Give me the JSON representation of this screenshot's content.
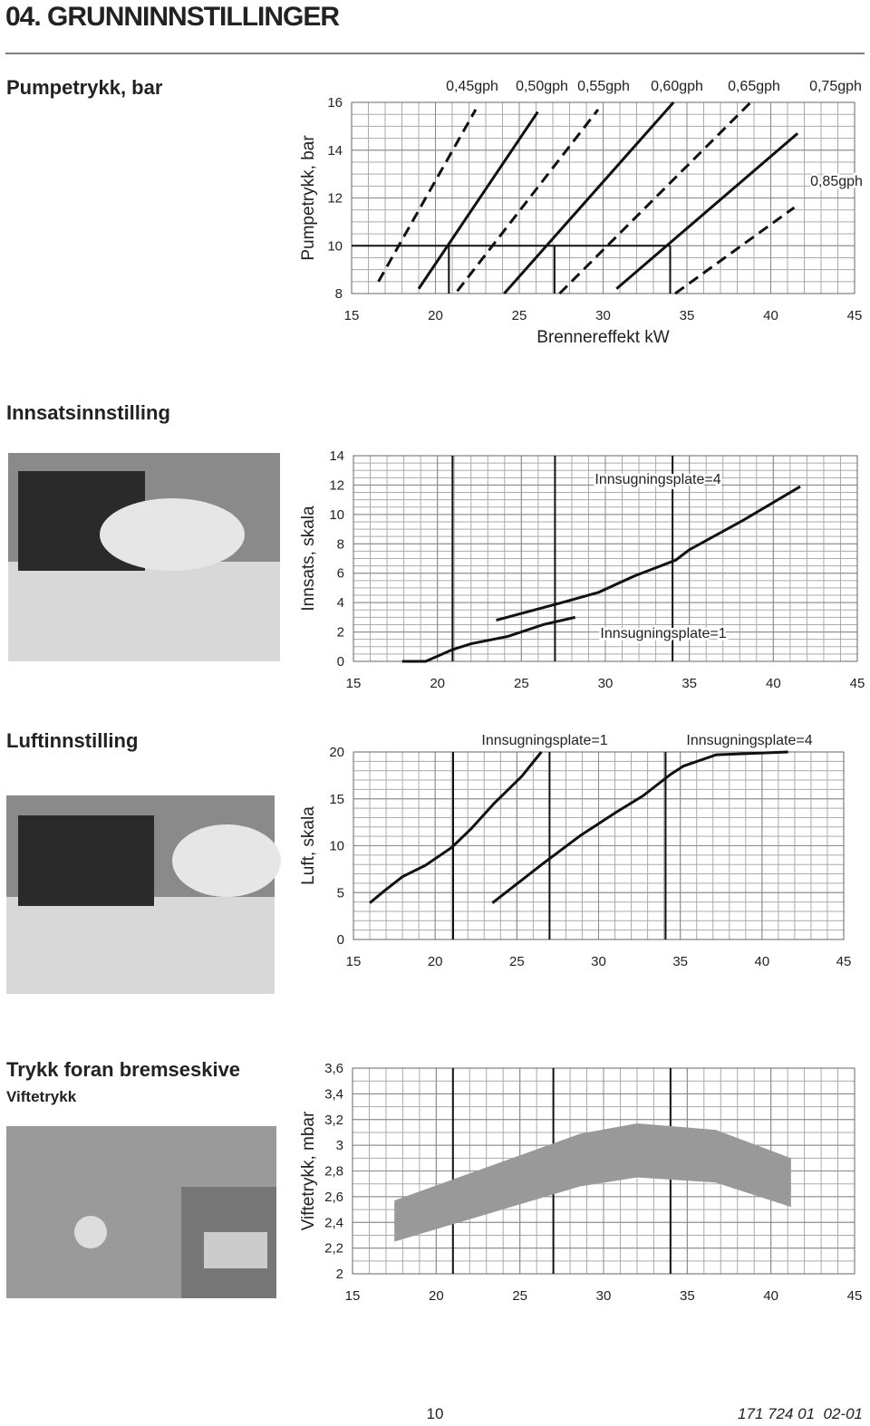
{
  "header": {
    "title": "04. GRUNNINNSTILLINGER"
  },
  "sections": [
    {
      "heading": "Pumpetrykk, bar"
    },
    {
      "heading": "Innsatsinnstilling"
    },
    {
      "heading": "Luftinnstilling"
    },
    {
      "heading": "Trykk foran bremseskive",
      "subheading": "Viftetrykk"
    }
  ],
  "chart_data": [
    {
      "type": "line",
      "ylabel": "Pumpetrykk, bar",
      "xlabel": "Brennereffekt kW",
      "xlim": [
        15,
        45
      ],
      "ylim": [
        8,
        16
      ],
      "xticks": [
        15,
        20,
        25,
        30,
        35,
        40,
        45
      ],
      "yticks": [
        8,
        10,
        12,
        14,
        16
      ],
      "grid": true,
      "ref_y": 10,
      "ref_x": [
        20.8,
        27.1,
        34.0
      ],
      "series": [
        {
          "name": "0,45gph",
          "color": "#111111",
          "dash": true,
          "x": [
            16.6,
            22.4
          ],
          "values": [
            8.5,
            15.7
          ]
        },
        {
          "name": "0,50gph",
          "color": "#111111",
          "dash": false,
          "x": [
            19.0,
            26.1
          ],
          "values": [
            8.2,
            15.6
          ]
        },
        {
          "name": "0,55gph",
          "color": "#111111",
          "dash": true,
          "x": [
            21.3,
            29.7
          ],
          "values": [
            8.1,
            15.7
          ]
        },
        {
          "name": "0,60gph",
          "color": "#111111",
          "dash": false,
          "x": [
            24.1,
            34.2
          ],
          "values": [
            8.0,
            16.0
          ]
        },
        {
          "name": "0,65gph",
          "color": "#111111",
          "dash": true,
          "x": [
            27.4,
            38.8
          ],
          "values": [
            8.0,
            16.0
          ]
        },
        {
          "name": "0,75gph",
          "color": "#111111",
          "dash": false,
          "x": [
            30.8,
            41.6
          ],
          "values": [
            8.2,
            14.7
          ]
        },
        {
          "name": "0,85gph",
          "color": "#111111",
          "dash": true,
          "x": [
            34.3,
            41.4
          ],
          "values": [
            8.0,
            11.6
          ]
        }
      ]
    },
    {
      "type": "line",
      "ylabel": "Innsats, skala",
      "xlim": [
        15,
        45
      ],
      "ylim": [
        0,
        14
      ],
      "xticks": [
        15,
        20,
        25,
        30,
        35,
        40,
        45
      ],
      "yticks": [
        0,
        2,
        4,
        6,
        8,
        10,
        12,
        14
      ],
      "grid": true,
      "ref_x": [
        20.9,
        27.0,
        34.0
      ],
      "series": [
        {
          "name": "Innsugningsplate=1",
          "color": "#111111",
          "dash": false,
          "x": [
            17.9,
            19.3,
            20.9,
            22.0,
            24.2,
            26.3,
            28.2
          ],
          "values": [
            0,
            0,
            0.8,
            1.2,
            1.7,
            2.5,
            3.0
          ]
        },
        {
          "name": "Innsugningsplate=4",
          "color": "#111111",
          "dash": false,
          "x": [
            23.5,
            27.4,
            29.6,
            31.7,
            34.2,
            35.0,
            38.2,
            41.6
          ],
          "values": [
            2.8,
            4.0,
            4.7,
            5.8,
            6.9,
            7.6,
            9.6,
            11.9
          ]
        }
      ]
    },
    {
      "type": "line",
      "ylabel": "Luft, skala",
      "xlim": [
        15,
        45
      ],
      "ylim": [
        0,
        20
      ],
      "xticks": [
        15,
        20,
        25,
        30,
        35,
        40,
        45
      ],
      "yticks": [
        0,
        5,
        10,
        15,
        20
      ],
      "grid": true,
      "ref_x": [
        21.1,
        27.0,
        34.1
      ],
      "series": [
        {
          "name": "Innsugningsplate=1",
          "color": "#111111",
          "dash": false,
          "x": [
            16.0,
            16.9,
            18.0,
            19.4,
            21.0,
            22.2,
            23.6,
            25.3,
            26.5
          ],
          "values": [
            3.9,
            5.2,
            6.7,
            7.9,
            9.8,
            11.8,
            14.5,
            17.4,
            20.0
          ]
        },
        {
          "name": "Innsugningsplate=4",
          "color": "#111111",
          "dash": false,
          "x": [
            23.5,
            26.6,
            28.9,
            31.1,
            32.7,
            34.4,
            35.2,
            37.2,
            41.6
          ],
          "values": [
            3.9,
            8.1,
            11.1,
            13.6,
            15.3,
            17.6,
            18.5,
            19.7,
            20.0
          ]
        }
      ]
    },
    {
      "type": "area",
      "ylabel": "Viftetrykk, mbar",
      "xlim": [
        15,
        45
      ],
      "ylim": [
        2,
        3.6
      ],
      "xticks": [
        15,
        20,
        25,
        30,
        35,
        40,
        45
      ],
      "yticks": [
        2,
        {
          "value": 2.2,
          "label": "2,2"
        },
        {
          "value": 2.4,
          "label": "2,4"
        },
        {
          "value": 2.6,
          "label": "2,6"
        },
        {
          "value": 2.8,
          "label": "2,8"
        },
        3,
        {
          "value": 3.2,
          "label": "3,2"
        },
        {
          "value": 3.4,
          "label": "3,4"
        },
        {
          "value": 3.6,
          "label": "3,6"
        }
      ],
      "grid": true,
      "ref_x": [
        21.0,
        27.0,
        34.0
      ],
      "color": "#999999",
      "x": [
        17.5,
        28.6,
        32.0,
        36.7,
        41.2
      ],
      "upper": [
        2.57,
        3.09,
        3.17,
        3.12,
        2.9
      ],
      "lower": [
        2.25,
        2.68,
        2.75,
        2.71,
        2.52
      ]
    }
  ],
  "footer": {
    "page": 10,
    "code": "171 724 01  02-01"
  }
}
